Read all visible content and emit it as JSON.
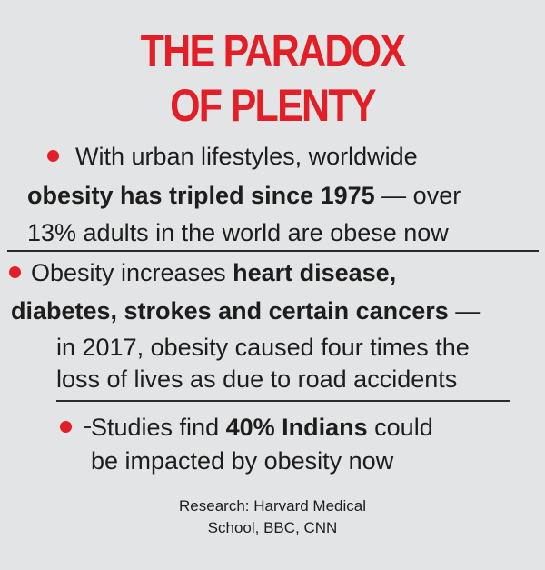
{
  "title": {
    "line1": "THE PARADOX",
    "line2": "OF PLENTY"
  },
  "bullets": [
    {
      "line1": "With urban lifestyles, worldwide",
      "line2_bold": "obesity has tripled since 1975",
      "line2_rest": " — over",
      "line3": "13% adults in the world are obese now"
    },
    {
      "line1_text": "Obesity increases ",
      "line1_bold": "heart disease,",
      "line2_bold": "diabetes, strokes and certain cancers",
      "line2_rest": " —",
      "line3": "in 2017, obesity caused four times the",
      "line4": "loss of lives as due to road accidents"
    },
    {
      "line1_text": "Studies find ",
      "line1_bold": "40% Indians",
      "line1_rest": " could",
      "line2": "be impacted by obesity now"
    }
  ],
  "source": {
    "line1": "Research: Harvard Medical",
    "line2": "School, BBC, CNN"
  },
  "colors": {
    "accent": "#e41e26",
    "background": "#e3e4e6",
    "text": "#1d1d1d"
  }
}
